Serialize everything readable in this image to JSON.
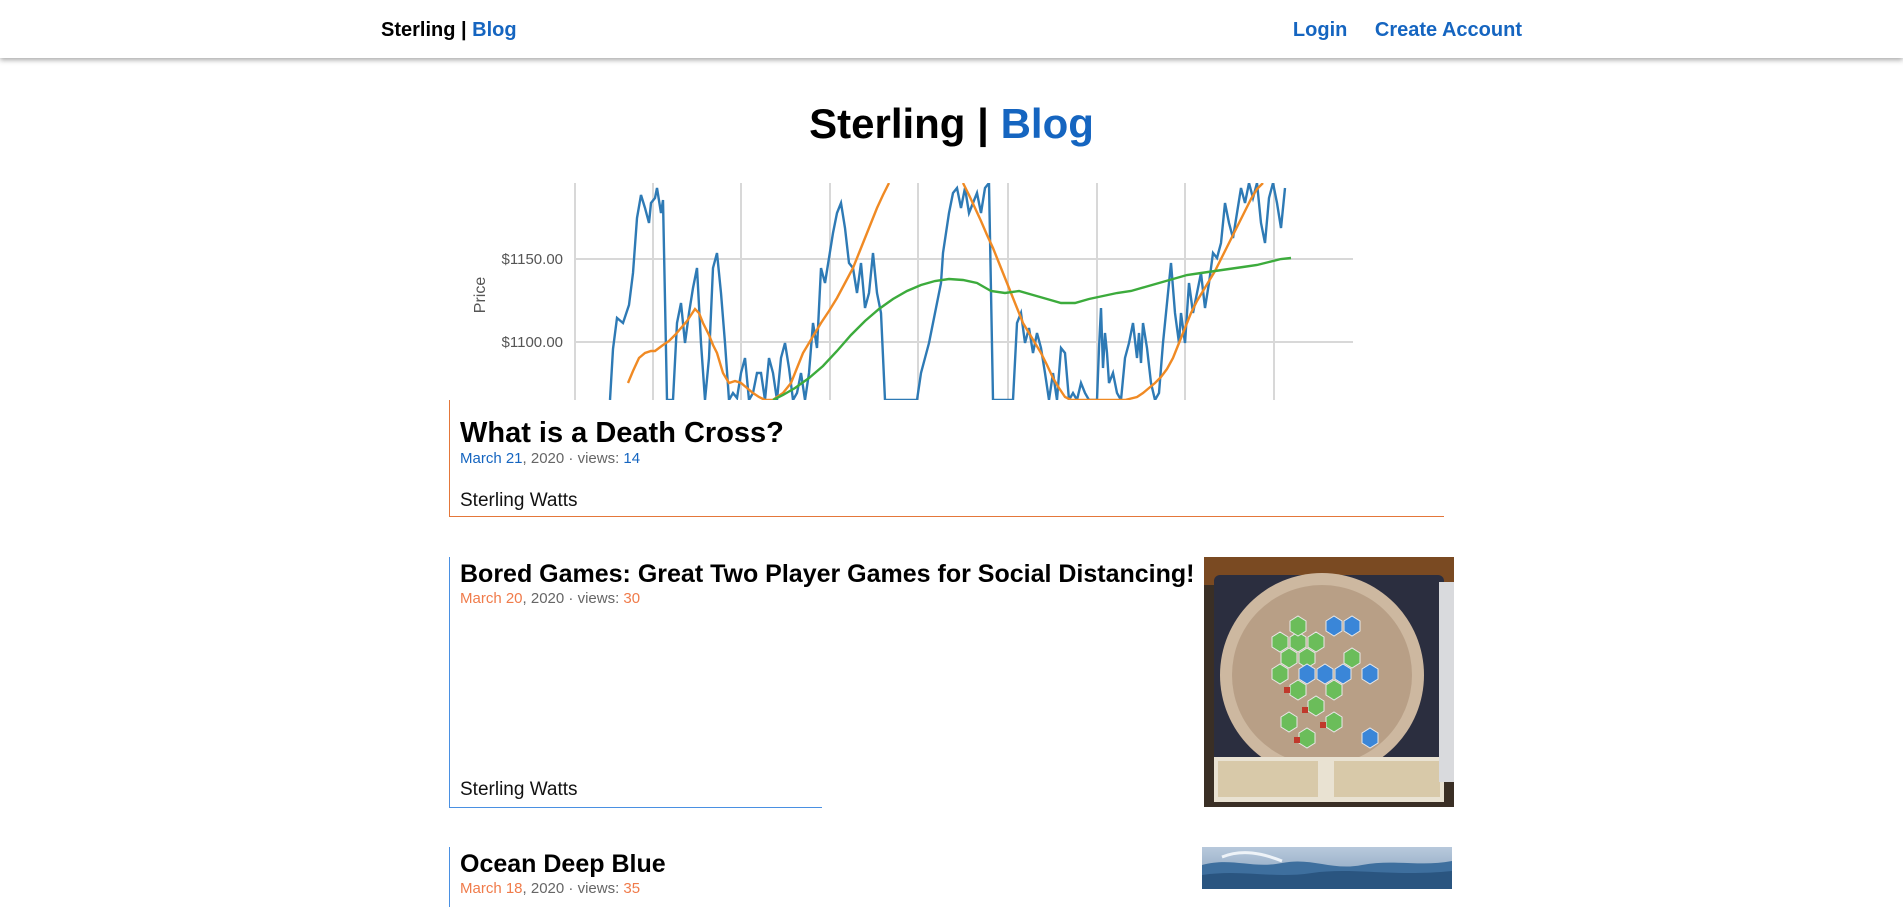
{
  "nav": {
    "brand_left": "Sterling",
    "brand_sep": " | ",
    "brand_right": "Blog",
    "login": "Login",
    "create_account": "Create Account"
  },
  "site": {
    "title_left": "Sterling",
    "title_sep": " | ",
    "title_right": "Blog"
  },
  "hero_chart": {
    "ylabel": "Price",
    "ticks": [
      "$1150.00",
      "$1100.00"
    ]
  },
  "posts": [
    {
      "title": "What is a Death Cross?",
      "date": "March 21",
      "year": ", 2020 · views: ",
      "views": "14",
      "author": "Sterling Watts",
      "accent": "#e4773a"
    },
    {
      "title": "Bored Games: Great Two Player Games for Social Distancing!",
      "date": "March 20",
      "year": ", 2020 · views: ",
      "views": "30",
      "author": "Sterling Watts",
      "accent": "#4a90e2"
    },
    {
      "title": "Ocean Deep Blue",
      "date": "March 18",
      "year": ", 2020 · views: ",
      "views": "35",
      "accent": "#4a90e2"
    }
  ],
  "icons": {
    "board_game": "board-game-image",
    "ocean": "ocean-image"
  }
}
